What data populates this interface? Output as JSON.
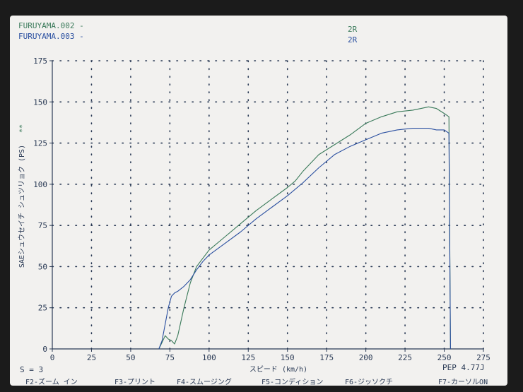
{
  "header": {
    "legend_1": "FURUYAMA.002 -",
    "legend_2": "FURUYAMA.003 -",
    "tag_1": "2R",
    "tag_2": "2R"
  },
  "status": {
    "smoothing": "S = 3",
    "pep": "PEP 4.77J"
  },
  "footer_keys": [
    "F2-ズーム イン",
    "F3-プリント",
    "F4-スムージング",
    "F5-コンディション",
    "F6-ジッソクチ",
    "F7-カーソルON"
  ],
  "colors": {
    "series_1": "#3a7a5a",
    "series_2": "#2a4fa0",
    "axis": "#2a3a55",
    "grid_dot": "#2a3a55"
  },
  "chart_data": {
    "type": "line",
    "xlabel": "スピード (km/h)",
    "ylabel": "SAEシュウセイチ シュツリョク (PS)",
    "y_marker": "**",
    "xlim": [
      0,
      275
    ],
    "ylim": [
      0,
      175
    ],
    "xticks": [
      0,
      25,
      50,
      75,
      100,
      125,
      150,
      175,
      200,
      225,
      250,
      275
    ],
    "yticks": [
      0,
      25,
      50,
      75,
      100,
      125,
      150,
      175
    ],
    "grid": true,
    "series": [
      {
        "name": "FURUYAMA.002",
        "x": [
          68,
          70,
          72,
          74,
          76,
          78,
          80,
          84,
          88,
          92,
          96,
          100,
          110,
          120,
          130,
          140,
          150,
          155,
          160,
          170,
          180,
          190,
          200,
          210,
          220,
          230,
          240,
          245,
          250,
          253,
          254
        ],
        "y": [
          0,
          4,
          8,
          6,
          5,
          3,
          8,
          25,
          40,
          50,
          55,
          60,
          68,
          76,
          84,
          91,
          98,
          102,
          108,
          118,
          124,
          130,
          137,
          141,
          144,
          145,
          147,
          146,
          143,
          141,
          0
        ]
      },
      {
        "name": "FURUYAMA.003",
        "x": [
          68,
          70,
          72,
          74,
          76,
          78,
          80,
          84,
          88,
          92,
          96,
          100,
          110,
          120,
          130,
          140,
          150,
          160,
          170,
          180,
          190,
          200,
          210,
          220,
          230,
          240,
          245,
          250,
          253,
          254
        ],
        "y": [
          0,
          5,
          15,
          25,
          32,
          34,
          35,
          38,
          42,
          48,
          53,
          57,
          64,
          71,
          79,
          86,
          93,
          101,
          110,
          118,
          123,
          127,
          131,
          133,
          134,
          134,
          133,
          133,
          131,
          0
        ]
      }
    ]
  }
}
